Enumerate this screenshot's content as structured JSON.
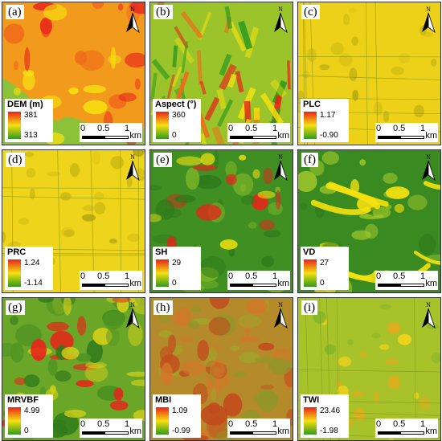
{
  "units": {
    "scale_unit": "km",
    "north_letter": "N"
  },
  "scale_ticks": [
    "0",
    "0.5",
    "1"
  ],
  "panels": [
    {
      "label": "(a)",
      "legend": {
        "title": "DEM (m)",
        "max": "381",
        "min": "313"
      }
    },
    {
      "label": "(b)",
      "legend": {
        "title": "Aspect (°)",
        "max": "360",
        "min": "0"
      }
    },
    {
      "label": "(c)",
      "legend": {
        "title": "PLC",
        "max": "1.17",
        "min": "-0.90"
      }
    },
    {
      "label": "(d)",
      "legend": {
        "title": "PRC",
        "max": "1.24",
        "min": "-1.14"
      }
    },
    {
      "label": "(e)",
      "legend": {
        "title": "SH",
        "max": "29",
        "min": "0"
      }
    },
    {
      "label": "(f)",
      "legend": {
        "title": "VD",
        "max": "27",
        "min": "0"
      }
    },
    {
      "label": "(g)",
      "legend": {
        "title": "MRVBF",
        "max": "4.99",
        "min": "0"
      }
    },
    {
      "label": "(h)",
      "legend": {
        "title": "MBI",
        "max": "1.09",
        "min": "-0.99"
      }
    },
    {
      "label": "(i)",
      "legend": {
        "title": "TWI",
        "max": "23.46",
        "min": "-1.98"
      }
    }
  ],
  "colors": {
    "high": "#e8231a",
    "mid": "#f5e10f",
    "low": "#2e9a1e",
    "frame": "#333333"
  }
}
